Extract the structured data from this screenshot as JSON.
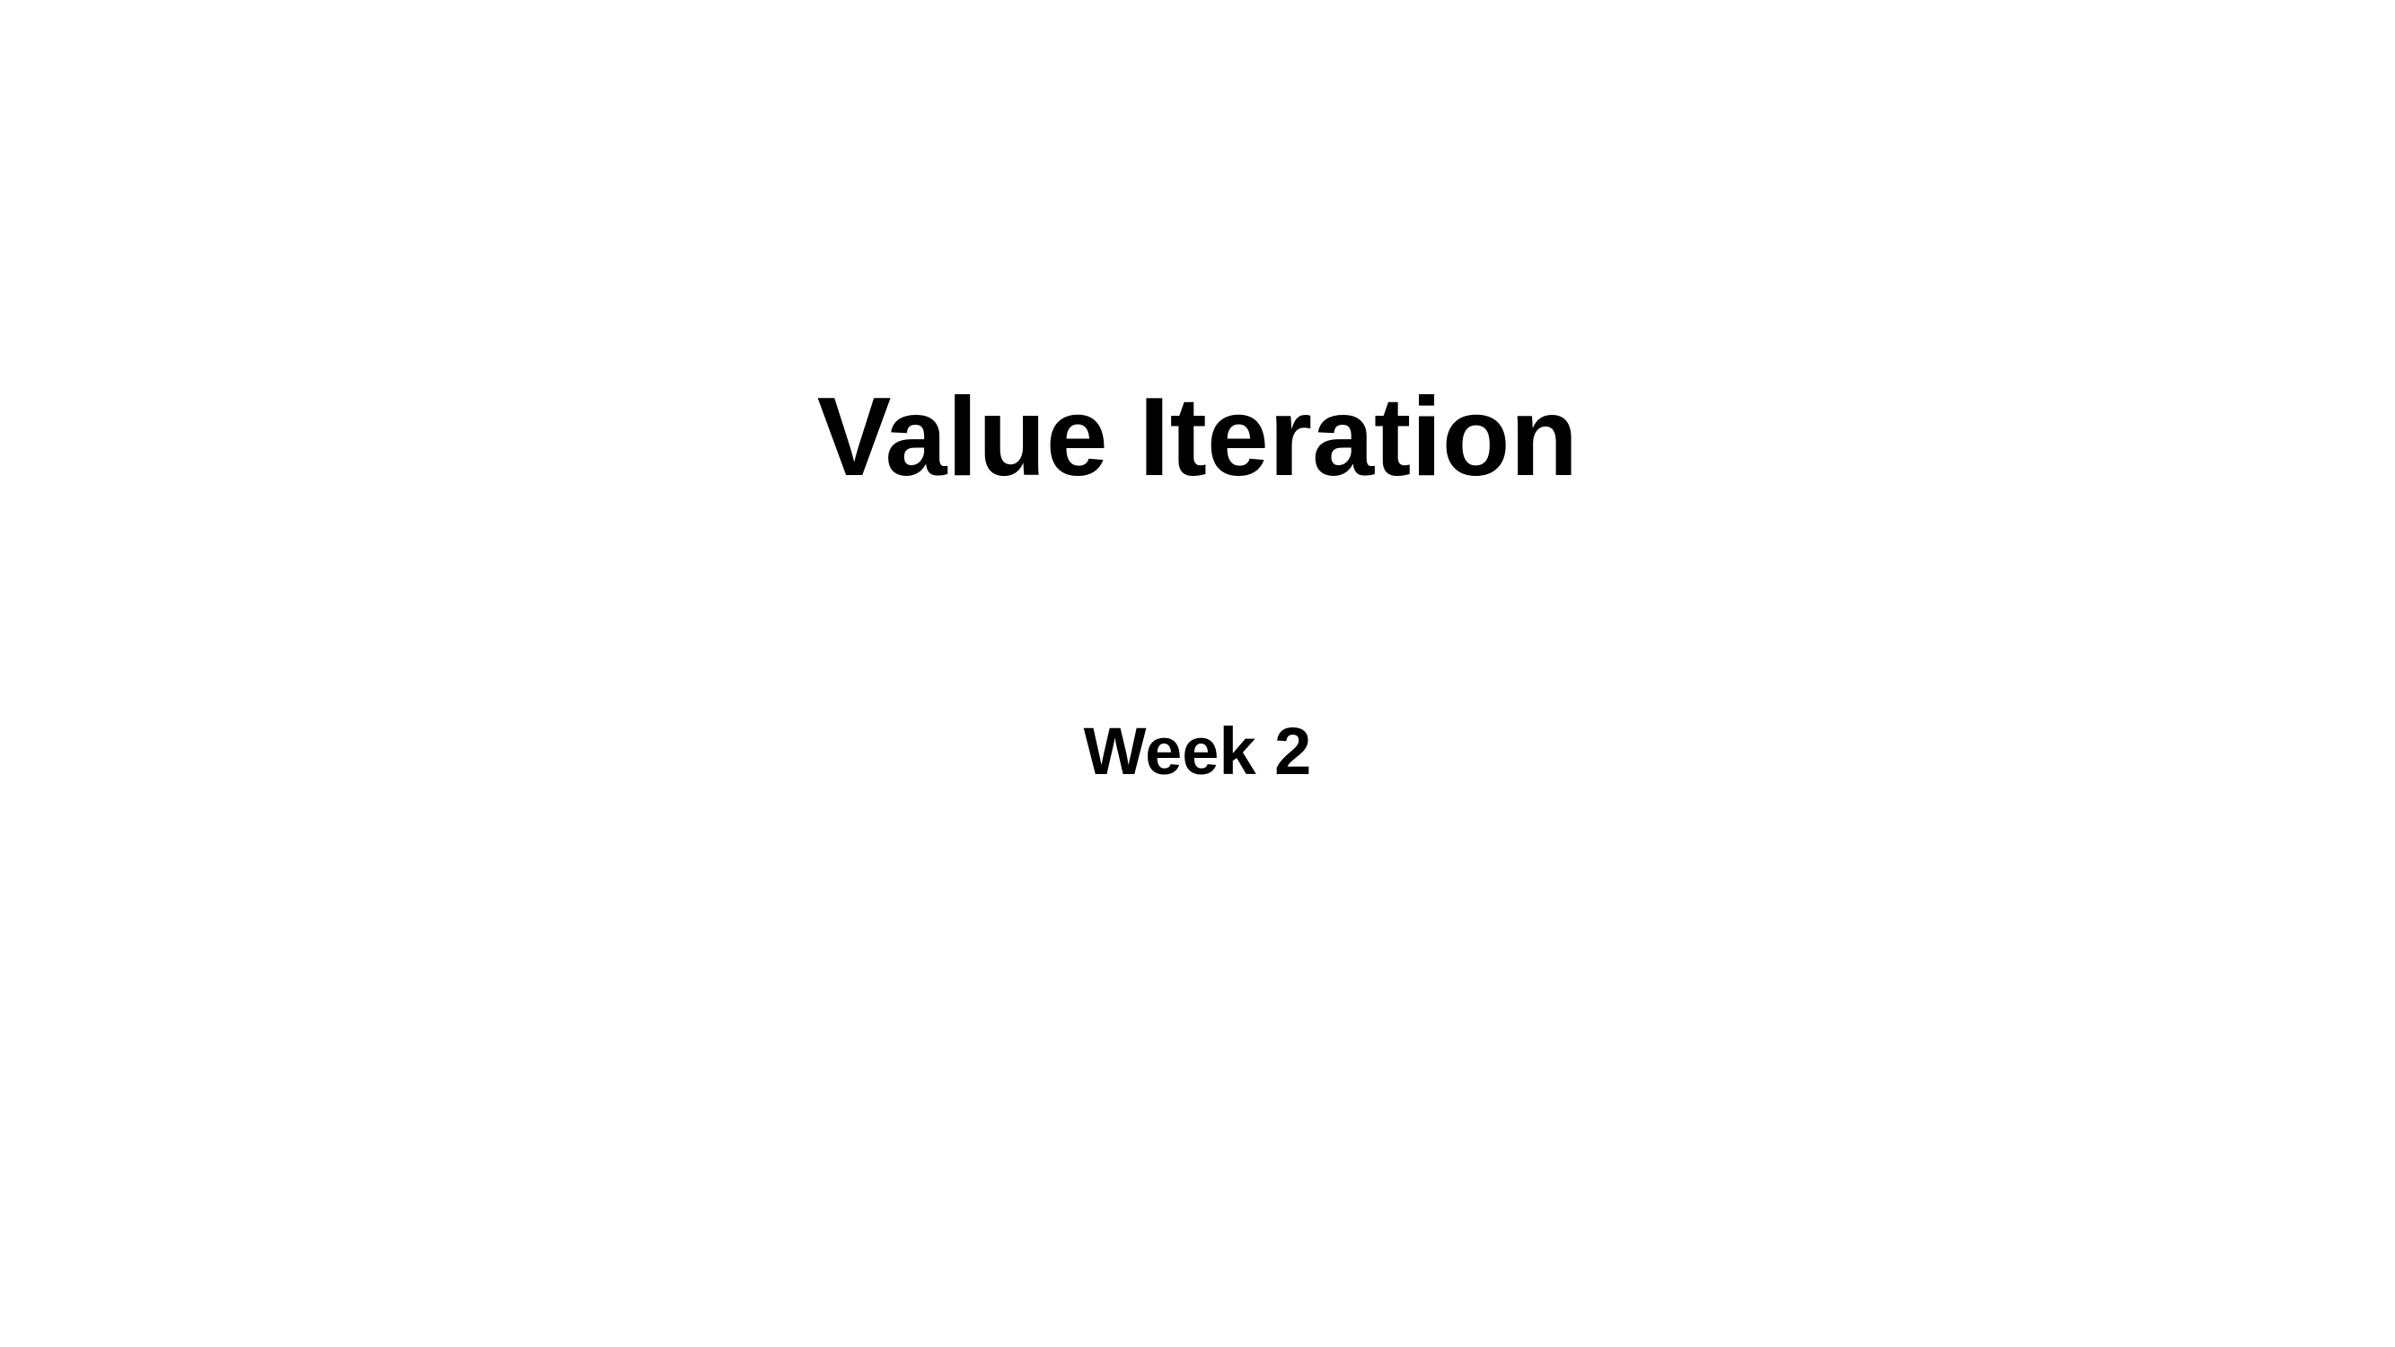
{
  "slide": {
    "title": "Value Iteration",
    "subtitle": "Week 2",
    "background_color": "#ffffff",
    "text_color": "#000000"
  }
}
